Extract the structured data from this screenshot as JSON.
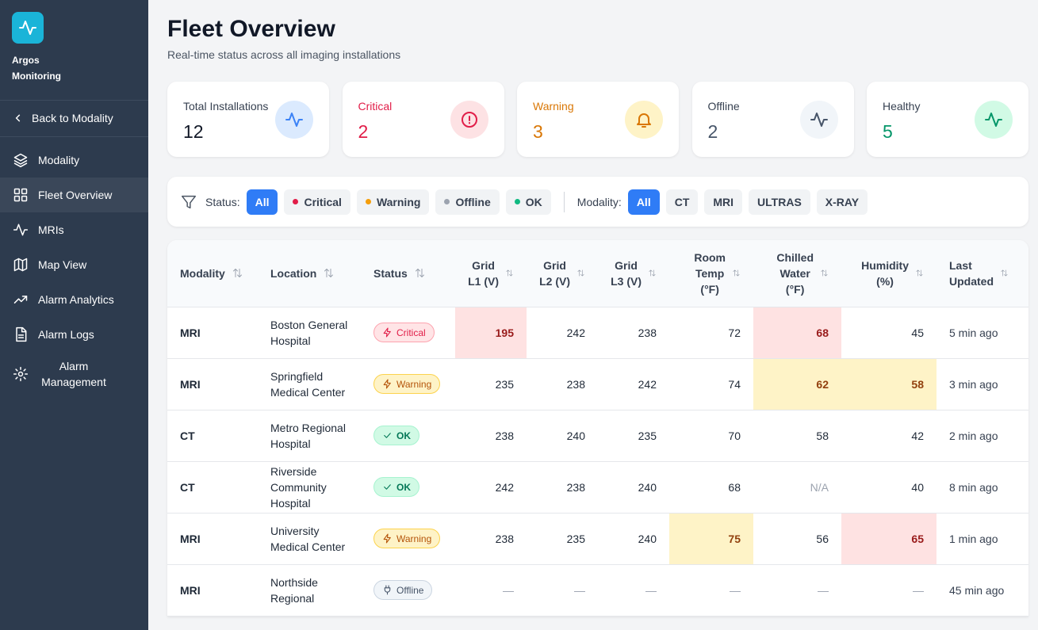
{
  "sidebar": {
    "brand": [
      "Argos",
      "Monitoring"
    ],
    "back": "Back to Modality",
    "nav": [
      "Modality",
      "Fleet Overview",
      "MRIs",
      "Map View",
      "Alarm Analytics",
      "Alarm Logs",
      "Alarm Management"
    ]
  },
  "header": {
    "title": "Fleet Overview",
    "subtitle": "Real-time status across all imaging installations"
  },
  "stats": [
    {
      "label": "Total Installations",
      "value": 12,
      "color": "#111827",
      "label_color": "#374151",
      "icon_bg": "#dbeafe",
      "icon_color": "#3b82f6"
    },
    {
      "label": "Critical",
      "value": 2,
      "color": "#e11d48",
      "label_color": "#e11d48",
      "icon_bg": "#fde2e4",
      "icon_color": "#e11d48"
    },
    {
      "label": "Warning",
      "value": 3,
      "color": "#d97706",
      "label_color": "#d97706",
      "icon_bg": "#fef3c7",
      "icon_color": "#d97706"
    },
    {
      "label": "Offline",
      "value": 2,
      "color": "#475569",
      "label_color": "#374151",
      "icon_bg": "#f1f5f9",
      "icon_color": "#475569"
    },
    {
      "label": "Healthy",
      "value": 5,
      "color": "#059669",
      "label_color": "#374151",
      "icon_bg": "#d1fae5",
      "icon_color": "#059669"
    }
  ],
  "filters": {
    "status_label": "Status:",
    "status_options": [
      {
        "label": "All",
        "color": null
      },
      {
        "label": "Critical",
        "color": "#e11d48"
      },
      {
        "label": "Warning",
        "color": "#f59e0b"
      },
      {
        "label": "Offline",
        "color": "#9ca3af"
      },
      {
        "label": "OK",
        "color": "#10b981"
      }
    ],
    "modality_label": "Modality:",
    "modality_options": [
      "All",
      "CT",
      "MRI",
      "ULTRAS",
      "X-RAY"
    ]
  },
  "table": {
    "columns": [
      {
        "lines": [
          "Modality"
        ]
      },
      {
        "lines": [
          "Location"
        ]
      },
      {
        "lines": [
          "Status"
        ]
      },
      {
        "lines": [
          "Grid",
          "L1 (V)"
        ]
      },
      {
        "lines": [
          "Grid",
          "L2 (V)"
        ]
      },
      {
        "lines": [
          "Grid",
          "L3 (V)"
        ]
      },
      {
        "lines": [
          "Room",
          "Temp",
          "(°F)"
        ]
      },
      {
        "lines": [
          "Chilled",
          "Water",
          "(°F)"
        ]
      },
      {
        "lines": [
          "Humidity",
          "(%)"
        ]
      },
      {
        "lines": [
          "Last",
          "Updated"
        ]
      }
    ],
    "rows": [
      {
        "modality": "MRI",
        "location": "Boston General Hospital",
        "status": "Critical",
        "tone": "critical",
        "values": [
          195,
          242,
          238,
          72,
          68,
          45
        ],
        "highlight": [
          "critical",
          null,
          null,
          null,
          "critical",
          null
        ],
        "updated": "5 min ago"
      },
      {
        "modality": "MRI",
        "location": "Springfield Medical Center",
        "status": "Warning",
        "tone": "warning",
        "values": [
          235,
          238,
          242,
          74,
          62,
          58
        ],
        "highlight": [
          null,
          null,
          null,
          null,
          "warning",
          "warning"
        ],
        "updated": "3 min ago"
      },
      {
        "modality": "CT",
        "location": "Metro Regional Hospital",
        "status": "OK",
        "tone": "ok",
        "values": [
          238,
          240,
          235,
          70,
          58,
          42
        ],
        "highlight": [
          null,
          null,
          null,
          null,
          null,
          null
        ],
        "updated": "2 min ago"
      },
      {
        "modality": "CT",
        "location": "Riverside Community Hospital",
        "status": "OK",
        "tone": "ok",
        "values": [
          242,
          238,
          240,
          68,
          "N/A",
          40
        ],
        "highlight": [
          null,
          null,
          null,
          null,
          "na",
          null
        ],
        "updated": "8 min ago"
      },
      {
        "modality": "MRI",
        "location": "University Medical Center",
        "status": "Warning",
        "tone": "warning",
        "values": [
          238,
          235,
          240,
          75,
          56,
          65
        ],
        "highlight": [
          null,
          null,
          null,
          "warning",
          null,
          "critical"
        ],
        "updated": "1 min ago"
      },
      {
        "modality": "MRI",
        "location": "Northside Regional",
        "status": "Offline",
        "tone": "offline",
        "values": [
          "—",
          "—",
          "—",
          "—",
          "—",
          "—"
        ],
        "highlight": [
          "na",
          "na",
          "na",
          "na",
          "na",
          "na"
        ],
        "updated": "45 min ago"
      }
    ]
  }
}
